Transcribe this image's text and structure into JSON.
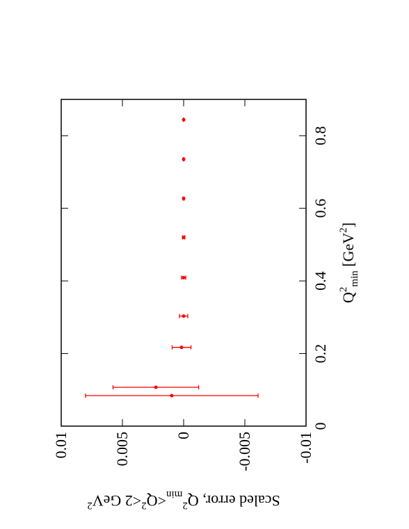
{
  "chart_data": {
    "type": "errorbar",
    "xlabel": [
      "Q",
      "2",
      "min",
      " [GeV",
      "2",
      "]"
    ],
    "ylabel": [
      "Scaled error, Q",
      "2",
      "min",
      "<Q",
      "2",
      "<2 GeV",
      "2"
    ],
    "x": [
      0.084,
      0.107,
      0.217,
      0.303,
      0.409,
      0.52,
      0.627,
      0.735,
      0.844
    ],
    "series": [
      {
        "color": "#ff0000",
        "values": [
          0.00097,
          0.00227,
          0.00017,
          0.0,
          0.0,
          0.0,
          0.0,
          0.0,
          0.0
        ],
        "errors": [
          0.00705,
          0.0035,
          0.00077,
          0.00034,
          0.00017,
          0.0001,
          5e-05,
          3e-05,
          3e-05
        ]
      }
    ],
    "xlim": [
      0,
      0.9
    ],
    "xticks": [
      0,
      0.2,
      0.4,
      0.6,
      0.8
    ],
    "ylim": [
      -0.01,
      0.01
    ],
    "yticks": [
      -0.01,
      -0.005,
      0,
      0.005,
      0.01
    ]
  }
}
